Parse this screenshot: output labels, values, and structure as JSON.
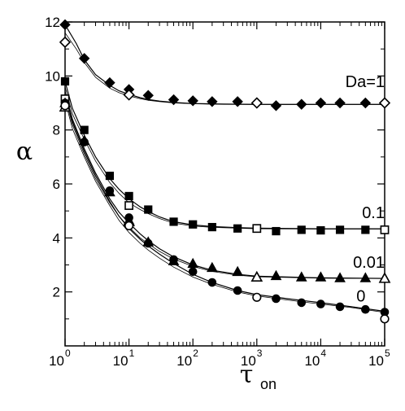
{
  "chart_data": {
    "type": "scatter",
    "title": "",
    "xlabel": "τ",
    "xlabel_sub": "on",
    "ylabel": "α",
    "x_scale": "log",
    "xlim": [
      1,
      100000
    ],
    "ylim": [
      0,
      12
    ],
    "grid": false,
    "x_ticks": [
      {
        "value": 1,
        "base": "10",
        "exp": "0"
      },
      {
        "value": 10,
        "base": "10",
        "exp": "1"
      },
      {
        "value": 100,
        "base": "10",
        "exp": "2"
      },
      {
        "value": 1000,
        "base": "10",
        "exp": "3"
      },
      {
        "value": 10000,
        "base": "10",
        "exp": "4"
      },
      {
        "value": 100000,
        "base": "10",
        "exp": "5"
      }
    ],
    "y_ticks": [
      {
        "value": 2,
        "label": "2"
      },
      {
        "value": 4,
        "label": "4"
      },
      {
        "value": 6,
        "label": "6"
      },
      {
        "value": 8,
        "label": "8"
      },
      {
        "value": 10,
        "label": "10"
      },
      {
        "value": 12,
        "label": "12"
      }
    ],
    "series": [
      {
        "name": "Da=1",
        "label_at": [
          100000,
          9.8
        ],
        "curves": [
          {
            "x": [
              1,
              1.5,
              2,
              3,
              5,
              7,
              10,
              15,
              20,
              30,
              50,
              100,
              300,
              1000,
              10000,
              100000
            ],
            "y": [
              11.9,
              11.2,
              10.6,
              10.05,
              9.65,
              9.45,
              9.32,
              9.2,
              9.13,
              9.07,
              9.02,
              8.98,
              8.96,
              8.95,
              8.95,
              8.95
            ]
          },
          {
            "x": [
              1,
              1.5,
              2,
              3,
              5,
              7,
              10,
              15,
              20,
              30,
              50,
              100,
              300,
              1000,
              10000,
              100000
            ],
            "y": [
              11.6,
              11.0,
              10.5,
              9.95,
              9.55,
              9.38,
              9.26,
              9.16,
              9.1,
              9.05,
              9.0,
              8.97,
              8.95,
              8.94,
              8.94,
              8.94
            ]
          }
        ],
        "filled": {
          "marker": "diamond",
          "x": [
            1,
            2,
            5,
            10,
            20,
            50,
            100,
            200,
            500,
            2000,
            5000,
            10000,
            20000,
            50000,
            100000
          ],
          "y": [
            11.9,
            10.65,
            9.75,
            9.5,
            9.28,
            9.12,
            9.08,
            9.05,
            9.05,
            8.9,
            8.95,
            9.0,
            9.0,
            9.0,
            9.0
          ]
        },
        "open": {
          "marker": "diamond",
          "x": [
            1,
            10,
            1000,
            100000
          ],
          "y": [
            11.25,
            9.3,
            9.0,
            9.0
          ]
        }
      },
      {
        "name": "0.1",
        "label_at": [
          100000,
          4.95
        ],
        "curves": [
          {
            "x": [
              1,
              1.3,
              2,
              3,
              5,
              7,
              10,
              15,
              20,
              30,
              50,
              100,
              200,
              500,
              1000,
              10000,
              100000
            ],
            "y": [
              9.8,
              8.8,
              7.8,
              7.0,
              6.2,
              5.8,
              5.45,
              5.15,
              4.98,
              4.78,
              4.6,
              4.48,
              4.42,
              4.38,
              4.36,
              4.34,
              4.34
            ]
          },
          {
            "x": [
              1,
              1.3,
              2,
              3,
              5,
              7,
              10,
              15,
              20,
              30,
              50,
              100,
              200,
              500,
              1000,
              10000,
              100000
            ],
            "y": [
              9.6,
              8.6,
              7.65,
              6.85,
              6.05,
              5.65,
              5.3,
              5.05,
              4.9,
              4.72,
              4.55,
              4.44,
              4.39,
              4.36,
              4.34,
              4.33,
              4.33
            ]
          }
        ],
        "filled": {
          "marker": "square",
          "x": [
            1,
            2,
            5,
            10,
            20,
            50,
            100,
            200,
            500,
            2000,
            5000,
            10000,
            20000,
            50000,
            100000
          ],
          "y": [
            9.8,
            8.0,
            6.3,
            5.55,
            5.05,
            4.6,
            4.5,
            4.4,
            4.35,
            4.25,
            4.3,
            4.28,
            4.3,
            4.3,
            4.3
          ]
        },
        "open": {
          "marker": "square",
          "x": [
            1,
            10,
            1000,
            100000
          ],
          "y": [
            9.15,
            5.2,
            4.35,
            4.3
          ]
        }
      },
      {
        "name": "0.01",
        "label_at": [
          100000,
          3.1
        ],
        "curves": [
          {
            "x": [
              1,
              1.3,
              2,
              3,
              5,
              7,
              10,
              15,
              20,
              30,
              50,
              100,
              200,
              500,
              1000,
              10000,
              100000
            ],
            "y": [
              9.4,
              8.4,
              7.3,
              6.4,
              5.45,
              4.95,
              4.55,
              4.15,
              3.9,
              3.6,
              3.3,
              3.0,
              2.8,
              2.65,
              2.58,
              2.52,
              2.5
            ]
          },
          {
            "x": [
              1,
              1.3,
              2,
              3,
              5,
              7,
              10,
              15,
              20,
              30,
              50,
              100,
              200,
              500,
              1000,
              10000,
              100000
            ],
            "y": [
              9.2,
              8.2,
              7.1,
              6.2,
              5.3,
              4.8,
              4.4,
              4.0,
              3.78,
              3.5,
              3.22,
              2.95,
              2.76,
              2.62,
              2.56,
              2.51,
              2.5
            ]
          }
        ],
        "filled": {
          "marker": "triangle",
          "x": [
            1,
            2,
            5,
            10,
            20,
            50,
            100,
            200,
            500,
            2000,
            5000,
            10000,
            20000,
            50000,
            100000
          ],
          "y": [
            9.0,
            7.6,
            5.7,
            4.65,
            3.85,
            3.15,
            3.05,
            2.9,
            2.75,
            2.6,
            2.55,
            2.55,
            2.52,
            2.52,
            2.52
          ]
        },
        "open": {
          "marker": "triangle",
          "x": [
            1,
            10,
            1000,
            100000
          ],
          "y": [
            8.85,
            4.6,
            2.55,
            2.5
          ]
        }
      },
      {
        "name": "0",
        "label_at": [
          50000,
          1.85
        ],
        "curves": [
          {
            "x": [
              1,
              1.3,
              2,
              3,
              5,
              7,
              10,
              15,
              20,
              30,
              50,
              100,
              200,
              500,
              1000,
              3000,
              10000,
              30000,
              100000
            ],
            "y": [
              9.4,
              8.3,
              7.2,
              6.3,
              5.35,
              4.8,
              4.35,
              3.95,
              3.7,
              3.4,
              3.05,
              2.65,
              2.35,
              2.05,
              1.9,
              1.75,
              1.6,
              1.45,
              1.28
            ]
          },
          {
            "x": [
              1,
              1.3,
              2,
              3,
              5,
              7,
              10,
              15,
              20,
              30,
              50,
              100,
              200,
              500,
              1000,
              3000,
              10000,
              30000,
              100000
            ],
            "y": [
              9.1,
              8.05,
              7.0,
              6.1,
              5.2,
              4.65,
              4.2,
              3.8,
              3.55,
              3.25,
              2.92,
              2.55,
              2.28,
              2.0,
              1.85,
              1.7,
              1.55,
              1.42,
              1.24
            ]
          }
        ],
        "filled": {
          "marker": "circle",
          "x": [
            1,
            2,
            5,
            10,
            20,
            50,
            100,
            200,
            500,
            2000,
            5000,
            10000,
            20000,
            50000,
            100000
          ],
          "y": [
            9.0,
            7.55,
            5.75,
            4.75,
            3.8,
            3.2,
            2.75,
            2.35,
            2.05,
            1.75,
            1.6,
            1.55,
            1.45,
            1.35,
            1.25
          ]
        },
        "open": {
          "marker": "circle",
          "x": [
            1,
            10,
            1000,
            100000
          ],
          "y": [
            8.9,
            4.45,
            1.8,
            1.0
          ]
        }
      }
    ]
  }
}
